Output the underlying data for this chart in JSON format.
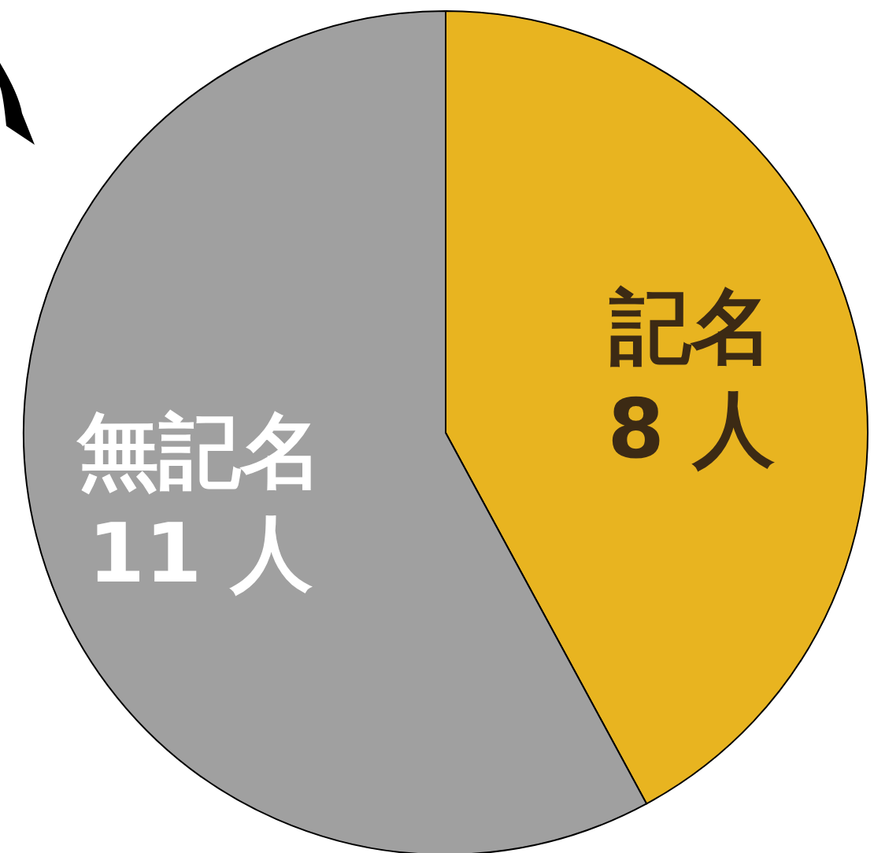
{
  "chart_data": {
    "type": "pie",
    "categories": [
      "記名",
      "無記名"
    ],
    "values": [
      8,
      11
    ],
    "value_labels": [
      "8 人",
      "11 人"
    ],
    "colors": [
      "#e8b420",
      "#a0a0a0"
    ]
  }
}
